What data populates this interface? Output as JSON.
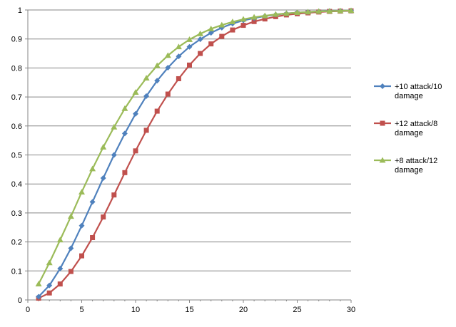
{
  "chart_data": {
    "type": "line",
    "title": "",
    "xlabel": "",
    "ylabel": "",
    "xlim": [
      0,
      30
    ],
    "ylim": [
      0,
      1
    ],
    "x_ticks": [
      0,
      5,
      10,
      15,
      20,
      25,
      30
    ],
    "y_ticks": [
      0,
      0.1,
      0.2,
      0.3,
      0.4,
      0.5,
      0.6,
      0.7,
      0.8,
      0.9,
      1
    ],
    "grid": "horizontal",
    "legend_position": "right",
    "x": [
      1,
      2,
      3,
      4,
      5,
      6,
      7,
      8,
      9,
      10,
      11,
      12,
      13,
      14,
      15,
      16,
      17,
      18,
      19,
      20,
      21,
      22,
      23,
      24,
      25,
      26,
      27,
      28,
      29,
      30
    ],
    "series": [
      {
        "name": "+10 attack/10 damage",
        "legend_lines": [
          "+10 attack/10",
          "damage"
        ],
        "color": "#4f81bd",
        "marker": "diamond",
        "values": [
          0.011,
          0.05,
          0.108,
          0.178,
          0.256,
          0.338,
          0.42,
          0.5,
          0.574,
          0.642,
          0.703,
          0.756,
          0.801,
          0.84,
          0.873,
          0.899,
          0.921,
          0.939,
          0.953,
          0.964,
          0.972,
          0.979,
          0.984,
          0.988,
          0.991,
          0.993,
          0.995,
          0.996,
          0.997,
          0.998
        ]
      },
      {
        "name": "+12 attack/8 damage",
        "legend_lines": [
          "+12 attack/8",
          "damage"
        ],
        "color": "#c0504d",
        "marker": "square",
        "values": [
          0.006,
          0.024,
          0.055,
          0.098,
          0.152,
          0.215,
          0.286,
          0.362,
          0.439,
          0.514,
          0.585,
          0.651,
          0.71,
          0.763,
          0.81,
          0.85,
          0.883,
          0.909,
          0.931,
          0.947,
          0.96,
          0.969,
          0.977,
          0.983,
          0.987,
          0.99,
          0.993,
          0.995,
          0.996,
          0.997
        ]
      },
      {
        "name": "+8 attack/12 damage",
        "legend_lines": [
          "+8 attack/12",
          "damage"
        ],
        "color": "#9bbb59",
        "marker": "triangle",
        "values": [
          0.055,
          0.128,
          0.207,
          0.288,
          0.372,
          0.452,
          0.527,
          0.596,
          0.66,
          0.716,
          0.765,
          0.808,
          0.843,
          0.873,
          0.898,
          0.918,
          0.935,
          0.948,
          0.959,
          0.968,
          0.975,
          0.98,
          0.985,
          0.988,
          0.991,
          0.993,
          0.995,
          0.996,
          0.997,
          0.998
        ]
      }
    ]
  }
}
